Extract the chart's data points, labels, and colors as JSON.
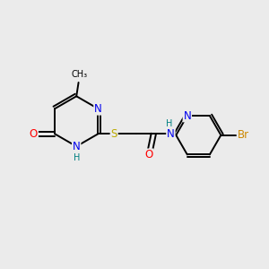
{
  "background_color": "#ebebeb",
  "colors": {
    "N": "#0000ee",
    "O": "#ff0000",
    "S": "#bbaa00",
    "Br": "#cc8800",
    "C": "#000000",
    "H": "#008080"
  },
  "bond_lw": 1.4,
  "font_size": 8.5
}
